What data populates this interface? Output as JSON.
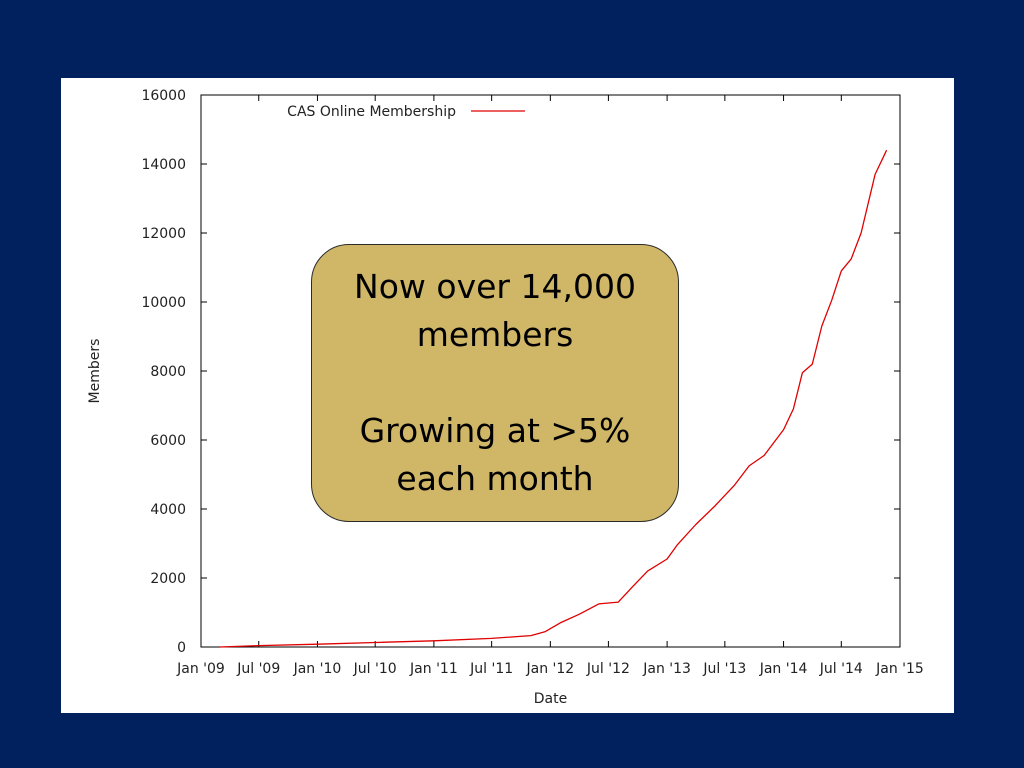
{
  "colors": {
    "background": "#00215e",
    "panel": "#ffffff",
    "series": "#e00000",
    "callout_fill": "#cfb767",
    "axis": "#000000"
  },
  "callout": {
    "line1": "Now over 14,000",
    "line2": "members",
    "line3": "Growing at >5%",
    "line4": "each month"
  },
  "chart_data": {
    "type": "line",
    "title": "",
    "xlabel": "Date",
    "ylabel": "Members",
    "ylim": [
      0,
      16000
    ],
    "xlim": [
      "2009-01-01",
      "2015-01-01"
    ],
    "yticks": [
      0,
      2000,
      4000,
      6000,
      8000,
      10000,
      12000,
      14000,
      16000
    ],
    "xticks": [
      {
        "date": "2009-01-01",
        "label": "Jan '09"
      },
      {
        "date": "2009-07-01",
        "label": "Jul '09"
      },
      {
        "date": "2010-01-01",
        "label": "Jan '10"
      },
      {
        "date": "2010-07-01",
        "label": "Jul '10"
      },
      {
        "date": "2011-01-01",
        "label": "Jan '11"
      },
      {
        "date": "2011-07-01",
        "label": "Jul '11"
      },
      {
        "date": "2012-01-01",
        "label": "Jan '12"
      },
      {
        "date": "2012-07-01",
        "label": "Jul '12"
      },
      {
        "date": "2013-01-01",
        "label": "Jan '13"
      },
      {
        "date": "2013-07-01",
        "label": "Jul '13"
      },
      {
        "date": "2014-01-01",
        "label": "Jan '14"
      },
      {
        "date": "2014-07-01",
        "label": "Jul '14"
      },
      {
        "date": "2015-01-01",
        "label": "Jan '15"
      }
    ],
    "grid": false,
    "legend_position": "top-left",
    "series": [
      {
        "name": "CAS Online Membership",
        "color": "#e00000",
        "x": [
          "2009-03-01",
          "2009-07-01",
          "2010-01-01",
          "2010-07-01",
          "2011-01-01",
          "2011-07-01",
          "2011-11-01",
          "2011-12-15",
          "2012-02-01",
          "2012-04-01",
          "2012-06-01",
          "2012-08-01",
          "2012-09-15",
          "2012-11-01",
          "2013-01-01",
          "2013-02-01",
          "2013-04-01",
          "2013-06-01",
          "2013-08-01",
          "2013-09-15",
          "2013-11-01",
          "2014-01-01",
          "2014-02-01",
          "2014-03-01",
          "2014-04-01",
          "2014-05-01",
          "2014-06-01",
          "2014-07-01",
          "2014-08-01",
          "2014-09-01",
          "2014-10-15",
          "2014-11-20"
        ],
        "y": [
          0,
          40,
          80,
          130,
          180,
          250,
          330,
          440,
          700,
          950,
          1250,
          1300,
          1750,
          2200,
          2550,
          2950,
          3550,
          4100,
          4700,
          5250,
          5550,
          6300,
          6900,
          7950,
          8200,
          9300,
          10050,
          10900,
          11250,
          12000,
          13700,
          14400
        ]
      }
    ]
  }
}
